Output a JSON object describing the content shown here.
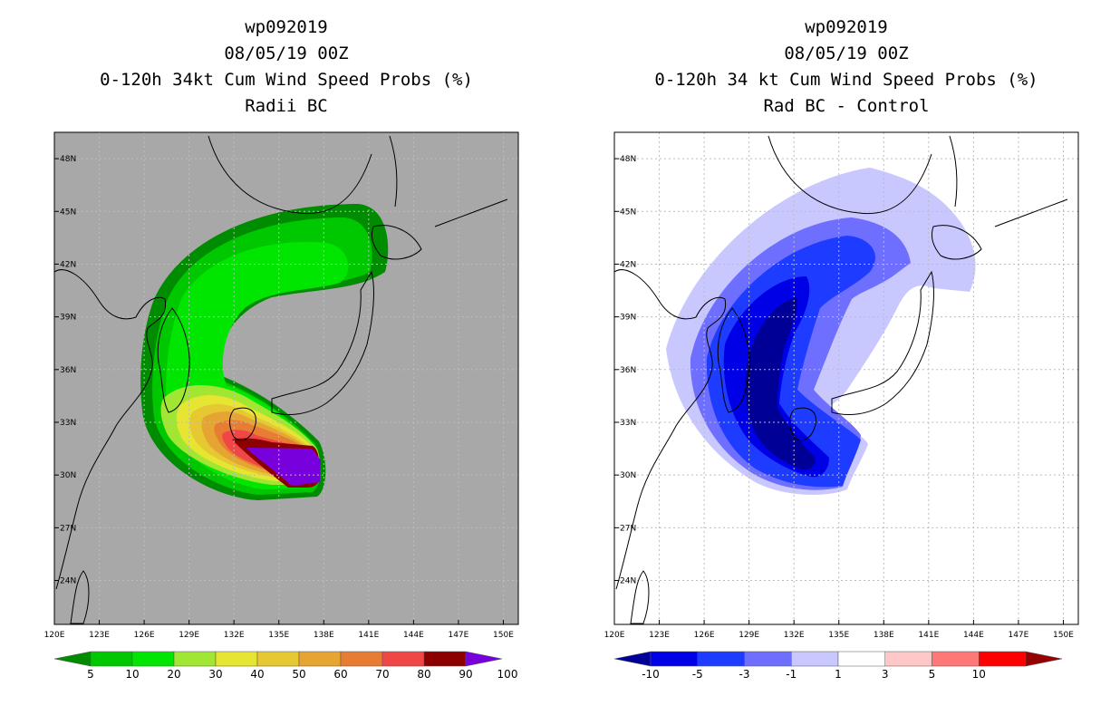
{
  "chart_data": [
    {
      "type": "heatmap",
      "title_lines": [
        "wp092019",
        "08/05/19 00Z",
        "0-120h 34kt Cum Wind Speed Probs (%)",
        "Radii BC"
      ],
      "xlabel": "",
      "ylabel": "",
      "x_ticks": [
        "120E",
        "123E",
        "126E",
        "129E",
        "132E",
        "135E",
        "138E",
        "141E",
        "144E",
        "147E",
        "150E"
      ],
      "y_ticks": [
        "24N",
        "27N",
        "30N",
        "33N",
        "36N",
        "39N",
        "42N",
        "45N",
        "48N"
      ],
      "xlim": [
        120,
        151
      ],
      "ylim": [
        21.5,
        49.5
      ],
      "background": "#a8a8a8",
      "colorbar": {
        "labels": [
          "5",
          "10",
          "20",
          "30",
          "40",
          "50",
          "60",
          "70",
          "80",
          "90",
          "100"
        ],
        "colors": [
          "#008c00",
          "#00c800",
          "#00e600",
          "#a0e632",
          "#e6e632",
          "#e6c832",
          "#e6a532",
          "#e67d32",
          "#f04646",
          "#8c0000",
          "#7800dc"
        ]
      },
      "contour_levels_pct": [
        5,
        10,
        20,
        30,
        40,
        50,
        60,
        70,
        80,
        90,
        100
      ]
    },
    {
      "type": "heatmap",
      "title_lines": [
        "wp092019",
        "08/05/19 00Z",
        "0-120h 34 kt Cum Wind Speed Probs (%)",
        "Rad BC - Control"
      ],
      "xlabel": "",
      "ylabel": "",
      "x_ticks": [
        "120E",
        "123E",
        "126E",
        "129E",
        "132E",
        "135E",
        "138E",
        "141E",
        "144E",
        "147E",
        "150E"
      ],
      "y_ticks": [
        "24N",
        "27N",
        "30N",
        "33N",
        "36N",
        "39N",
        "42N",
        "45N",
        "48N"
      ],
      "xlim": [
        120,
        151
      ],
      "ylim": [
        21.5,
        49.5
      ],
      "background": "#ffffff",
      "colorbar": {
        "labels": [
          "-10",
          "-5",
          "-3",
          "-1",
          "1",
          "3",
          "5",
          "10"
        ],
        "colors": [
          "#000096",
          "#0000e6",
          "#1e3cff",
          "#6e6eff",
          "#c8c8ff",
          "#ffffff",
          "#ffc8c8",
          "#ff7878",
          "#ff0000",
          "#960000"
        ]
      },
      "contour_levels_pct": [
        -10,
        -5,
        -3,
        -1,
        1,
        3,
        5,
        10
      ]
    }
  ]
}
